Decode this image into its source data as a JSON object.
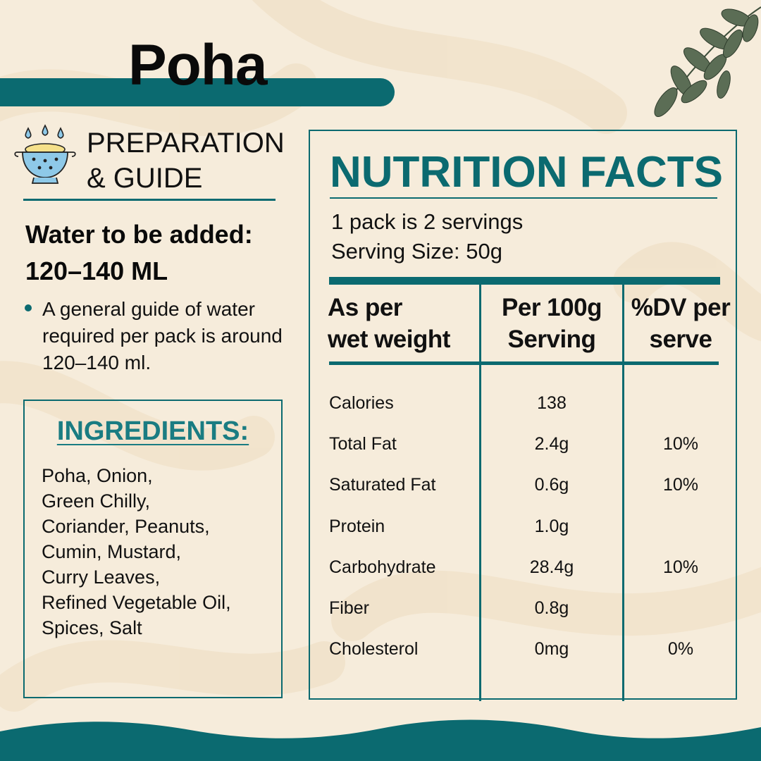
{
  "product_title": "Poha",
  "colors": {
    "teal": "#0b6a70",
    "teal_light": "#1a7c82",
    "background": "#f6ecdb"
  },
  "preparation": {
    "icon": "colander-icon",
    "heading": "PREPARATION\n& GUIDE",
    "water_label": "Water to be added:",
    "water_amount": "120–140 ML",
    "guide_text": "A general guide of water required per pack is around 120–140 ml."
  },
  "ingredients": {
    "title": "INGREDIENTS:",
    "text": "Poha, Onion,\nGreen Chilly,\nCoriander, Peanuts,\nCumin, Mustard,\nCurry Leaves,\nRefined Vegetable Oil,\nSpices, Salt"
  },
  "nutrition": {
    "title": "NUTRITION FACTS",
    "servings_line1": "1 pack is 2 servings",
    "servings_line2": "Serving Size: 50g",
    "columns": [
      "As per\nwet weight",
      "Per 100g\nServing",
      "%DV per\nserve"
    ],
    "rows": [
      {
        "name": "Calories",
        "value": "138",
        "dv": ""
      },
      {
        "name": "Total Fat",
        "value": "2.4g",
        "dv": "10%"
      },
      {
        "name": "Saturated Fat",
        "value": "0.6g",
        "dv": "10%"
      },
      {
        "name": "Protein",
        "value": "1.0g",
        "dv": ""
      },
      {
        "name": "Carbohydrate",
        "value": "28.4g",
        "dv": "10%"
      },
      {
        "name": "Fiber",
        "value": "0.8g",
        "dv": ""
      },
      {
        "name": "Cholesterol",
        "value": "0mg",
        "dv": "0%"
      }
    ]
  },
  "decor": {
    "leaves": "curry-leaves-icon"
  }
}
